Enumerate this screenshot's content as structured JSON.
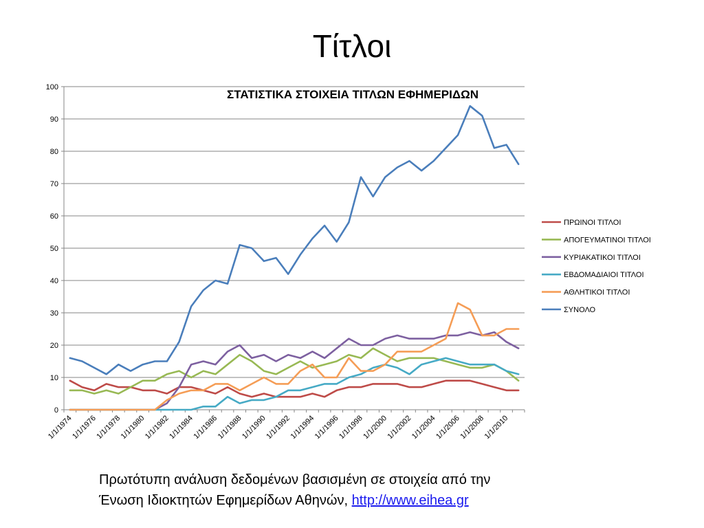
{
  "slide": {
    "title": "Τίτλοι"
  },
  "caption": {
    "line1": "Πρωτότυπη ανάλυση δεδομένων βασισμένη σε στοιχεία από την",
    "line2": "Ένωση Ιδιοκτητών Εφημερίδων Αθηνών, ",
    "link_text": "http://www.eihea.gr"
  },
  "chart_data": {
    "type": "line",
    "title": "ΣΤΑΤΙΣΤΙΚΑ ΣΤΟΙΧΕΙΑ ΤΙΤΛΩΝ ΕΦΗΜΕΡΙΔΩΝ",
    "xlabel": "",
    "ylabel": "",
    "ylim": [
      0,
      100
    ],
    "yticks": [
      0,
      10,
      20,
      30,
      40,
      50,
      60,
      70,
      80,
      90,
      100
    ],
    "grid": "horizontal",
    "legend_position": "right",
    "x": [
      "1/1/1974",
      "1/1/1975",
      "1/1/1976",
      "1/1/1977",
      "1/1/1978",
      "1/1/1979",
      "1/1/1980",
      "1/1/1981",
      "1/1/1982",
      "1/1/1983",
      "1/1/1984",
      "1/1/1985",
      "1/1/1986",
      "1/1/1987",
      "1/1/1988",
      "1/1/1989",
      "1/1/1990",
      "1/1/1991",
      "1/1/1992",
      "1/1/1993",
      "1/1/1994",
      "1/1/1995",
      "1/1/1996",
      "1/1/1997",
      "1/1/1998",
      "1/1/1999",
      "1/1/2000",
      "1/1/2001",
      "1/1/2002",
      "1/1/2003",
      "1/1/2004",
      "1/1/2005",
      "1/1/2006",
      "1/1/2007",
      "1/1/2008",
      "1/1/2009",
      "1/1/2010",
      "1/1/2011"
    ],
    "x_tick_labels": [
      "1/1/1974",
      "1/1/1976",
      "1/1/1978",
      "1/1/1980",
      "1/1/1982",
      "1/1/1984",
      "1/1/1986",
      "1/1/1988",
      "1/1/1990",
      "1/1/1992",
      "1/1/1994",
      "1/1/1996",
      "1/1/1998",
      "1/1/2000",
      "1/1/2002",
      "1/1/2004",
      "1/1/2006",
      "1/1/2008",
      "1/1/2010"
    ],
    "series": [
      {
        "name": "ΠΡΩΙΝΟΙ ΤΙΤΛΟΙ",
        "color": "#be4b48",
        "values": [
          9,
          7,
          6,
          8,
          7,
          7,
          6,
          6,
          5,
          7,
          7,
          6,
          5,
          7,
          5,
          4,
          5,
          4,
          4,
          4,
          5,
          4,
          6,
          7,
          7,
          8,
          8,
          8,
          7,
          7,
          8,
          9,
          9,
          9,
          8,
          7,
          6,
          6
        ]
      },
      {
        "name": "ΑΠΟΓΕΥΜΑΤΙΝΟΙ ΤΙΤΛΟΙ",
        "color": "#98b954",
        "values": [
          6,
          6,
          5,
          6,
          5,
          7,
          9,
          9,
          11,
          12,
          10,
          12,
          11,
          14,
          17,
          15,
          12,
          11,
          13,
          15,
          13,
          14,
          15,
          17,
          16,
          19,
          17,
          15,
          16,
          16,
          16,
          15,
          14,
          13,
          13,
          14,
          12,
          9
        ]
      },
      {
        "name": "ΚΥΡΙΑΚΑΤΙΚΟΙ ΤΙΤΛΟΙ",
        "color": "#7d60a0",
        "values": [
          0,
          0,
          0,
          0,
          0,
          0,
          0,
          0,
          2,
          7,
          14,
          15,
          14,
          18,
          20,
          16,
          17,
          15,
          17,
          16,
          18,
          16,
          19,
          22,
          20,
          20,
          22,
          23,
          22,
          22,
          22,
          23,
          23,
          24,
          23,
          24,
          21,
          19
        ]
      },
      {
        "name": "ΕΒΔΟΜΑΔΙΑΙΟΙ ΤΙΤΛΟΙ",
        "color": "#46aac5",
        "values": [
          0,
          0,
          0,
          0,
          0,
          0,
          0,
          0,
          0,
          0,
          0,
          1,
          1,
          4,
          2,
          3,
          3,
          4,
          6,
          6,
          7,
          8,
          8,
          10,
          11,
          13,
          14,
          13,
          11,
          14,
          15,
          16,
          15,
          14,
          14,
          14,
          12,
          11
        ]
      },
      {
        "name": "ΑΘΛΗΤΙΚΟΙ ΤΙΤΛΟΙ",
        "color": "#f59d56",
        "values": [
          0,
          0,
          0,
          0,
          0,
          0,
          0,
          0,
          3,
          5,
          6,
          6,
          8,
          8,
          6,
          8,
          10,
          8,
          8,
          12,
          14,
          10,
          10,
          16,
          12,
          12,
          14,
          18,
          18,
          18,
          20,
          22,
          33,
          31,
          23,
          23,
          25,
          25
        ]
      },
      {
        "name": "ΣΥΝΟΛΟ",
        "color": "#4a7ebb",
        "values": [
          16,
          15,
          13,
          11,
          14,
          12,
          14,
          15,
          15,
          21,
          32,
          37,
          40,
          39,
          51,
          50,
          46,
          47,
          42,
          48,
          53,
          57,
          52,
          58,
          72,
          66,
          72,
          75,
          77,
          74,
          77,
          81,
          85,
          94,
          91,
          81,
          82,
          76
        ]
      }
    ]
  }
}
